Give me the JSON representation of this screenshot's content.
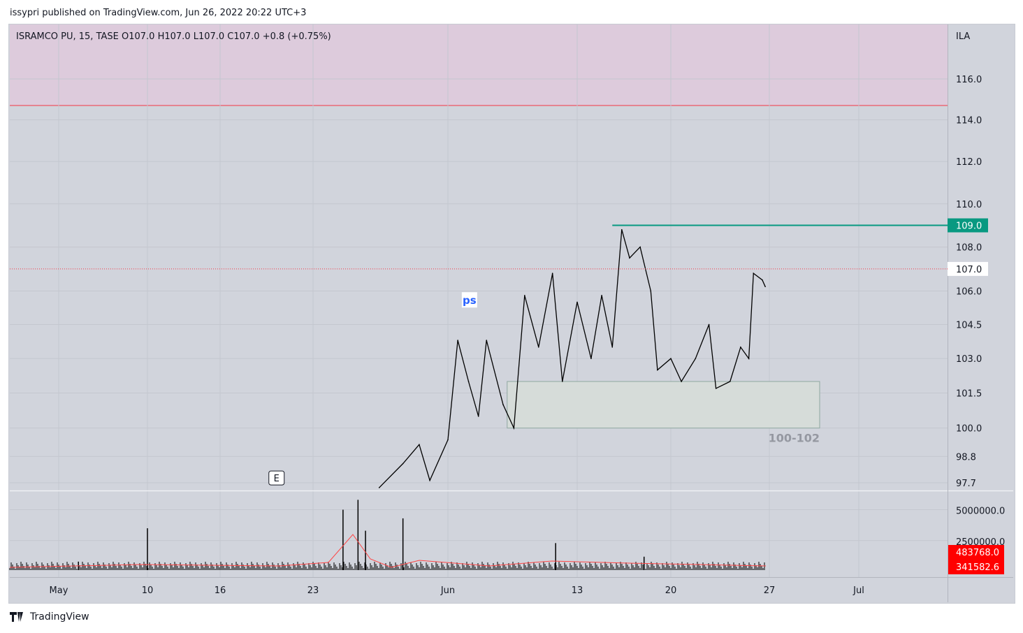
{
  "header": {
    "published": "issypri published on TradingView.com, Jun 26, 2022 20:22 UTC+3"
  },
  "legend": "ISRAMCO PU, 15, TASE  O107.0  H107.0  L107.0  C107.0  +0.8 (+0.75%)",
  "footer": {
    "brand": "TradingView"
  },
  "colors": {
    "background": "#d1d4dc",
    "resistance": "#089981",
    "last_price_line": "#f23645",
    "zone": "#e0c8dc",
    "volume_label": "#ff0000"
  },
  "chart_data": {
    "type": "line",
    "currency": "ILA",
    "y_scale": "log",
    "ylim": [
      97.7,
      116.6
    ],
    "y_ticks": [
      "116.0",
      "114.0",
      "112.0",
      "110.0",
      "108.0",
      "106.0",
      "104.5",
      "103.0",
      "101.5",
      "100.0",
      "98.8",
      "97.7"
    ],
    "x_ticks": [
      {
        "label": "May",
        "date": "2022-05-01"
      },
      {
        "label": "10",
        "date": "2022-05-10"
      },
      {
        "label": "16",
        "date": "2022-05-16"
      },
      {
        "label": "23",
        "date": "2022-05-23"
      },
      {
        "label": "Jun",
        "date": "2022-06-01"
      },
      {
        "label": "13",
        "date": "2022-06-13"
      },
      {
        "label": "20",
        "date": "2022-06-20"
      },
      {
        "label": "27",
        "date": "2022-06-27"
      },
      {
        "label": "Jul",
        "date": "2022-07-01"
      }
    ],
    "price": [
      [
        "2022-05-27T10:00",
        97.5
      ],
      [
        "2022-05-29T00:00",
        98.5
      ],
      [
        "2022-05-30T02:00",
        99.3
      ],
      [
        "2022-05-30T19:00",
        97.8
      ],
      [
        "2022-06-01T00:00",
        99.5
      ],
      [
        "2022-06-01T22:00",
        103.8
      ],
      [
        "2022-06-02T22:00",
        102.0
      ],
      [
        "2022-06-03T20:00",
        100.5
      ],
      [
        "2022-06-04T14:00",
        103.8
      ],
      [
        "2022-06-06T03:00",
        101.0
      ],
      [
        "2022-06-07T03:00",
        100.0
      ],
      [
        "2022-06-08T03:00",
        105.8
      ],
      [
        "2022-06-09T10:00",
        103.5
      ],
      [
        "2022-06-10T17:00",
        106.8
      ],
      [
        "2022-06-11T15:00",
        102.0
      ],
      [
        "2022-06-13T00:00",
        105.5
      ],
      [
        "2022-06-14T01:00",
        103.0
      ],
      [
        "2022-06-14T20:00",
        105.8
      ],
      [
        "2022-06-15T15:00",
        103.5
      ],
      [
        "2022-06-16T08:00",
        108.8
      ],
      [
        "2022-06-16T22:00",
        107.5
      ],
      [
        "2022-06-17T17:00",
        108.0
      ],
      [
        "2022-06-18T12:00",
        106.0
      ],
      [
        "2022-06-19T00:00",
        102.5
      ],
      [
        "2022-06-20T00:00",
        103.0
      ],
      [
        "2022-06-20T18:00",
        102.0
      ],
      [
        "2022-06-21T18:00",
        103.0
      ],
      [
        "2022-06-22T17:00",
        104.5
      ],
      [
        "2022-06-23T05:00",
        101.7
      ],
      [
        "2022-06-24T05:00",
        102.0
      ],
      [
        "2022-06-24T23:00",
        103.5
      ],
      [
        "2022-06-25T13:00",
        103.0
      ],
      [
        "2022-06-25T21:00",
        106.8
      ],
      [
        "2022-06-26T12:00",
        106.5
      ],
      [
        "2022-06-26T17:00",
        106.2
      ]
    ],
    "last_price": {
      "label": "107.0",
      "value": 107.0
    },
    "resistance": {
      "label": "109.0",
      "value": 109.0,
      "from": "2022-06-15T15:00"
    },
    "upper_zone_from": 114.7,
    "box": {
      "label": "100-102",
      "low": 100.0,
      "high": 102.0,
      "from": "2022-06-06T12:00",
      "to": "2022-06-29T06:00"
    },
    "annotations": [
      {
        "text": "ps",
        "date": "2022-06-03T00:00",
        "value": 105.6
      },
      {
        "text": "E",
        "date": "2022-05-20T06:00",
        "value": 97.9
      }
    ],
    "volume": {
      "y_ticks": [
        "5000000.0",
        "2500000.0"
      ],
      "ylim": [
        0,
        6500000
      ],
      "labels": [
        "483768.0",
        "341582.6"
      ],
      "spikes": [
        [
          "2022-05-03",
          800000
        ],
        [
          "2022-05-10",
          3500000
        ],
        [
          "2022-05-25",
          5000000
        ],
        [
          "2022-05-26",
          5800000
        ],
        [
          "2022-05-26T12:00",
          3300000
        ],
        [
          "2022-05-29",
          4300000
        ],
        [
          "2022-06-11",
          2300000
        ],
        [
          "2022-06-18",
          1200000
        ]
      ]
    }
  }
}
